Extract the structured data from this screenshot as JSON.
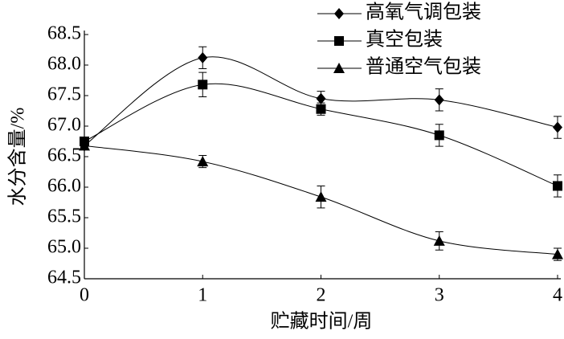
{
  "chart_data": {
    "type": "line",
    "x_label": "贮藏时间/周",
    "y_label": "水分含量/%",
    "x": [
      0,
      1,
      2,
      3,
      4
    ],
    "xlim": [
      0,
      4
    ],
    "xticks": [
      0,
      1,
      2,
      3,
      4
    ],
    "ylim": [
      64.5,
      68.5
    ],
    "yticks": [
      {
        "value": 64.5,
        "label": "64.5"
      },
      {
        "value": 65,
        "label": "65.0"
      },
      {
        "value": 65.5,
        "label": "65.5"
      },
      {
        "value": 66,
        "label": "66.0"
      },
      {
        "value": 66.5,
        "label": "66.5"
      },
      {
        "value": 67,
        "label": "67.0"
      },
      {
        "value": 67.5,
        "label": "67.5"
      },
      {
        "value": 68,
        "label": "68.0"
      },
      {
        "value": 68.5,
        "label": "68.5"
      }
    ],
    "series": [
      {
        "name": "高氧气调包装",
        "color": "#000000",
        "marker": "diamond",
        "values": [
          66.68,
          68.12,
          67.45,
          67.43,
          66.98
        ],
        "errors": [
          0.03,
          0.18,
          0.12,
          0.18,
          0.18
        ]
      },
      {
        "name": "真空包装",
        "color": "#000000",
        "marker": "square",
        "values": [
          66.75,
          67.68,
          67.28,
          66.85,
          66.02
        ],
        "errors": [
          0.05,
          0.2,
          0.1,
          0.18,
          0.18
        ]
      },
      {
        "name": "普通空气包装",
        "color": "#000000",
        "marker": "triangle",
        "values": [
          66.68,
          66.42,
          65.84,
          65.12,
          64.9
        ],
        "errors": [
          0.05,
          0.1,
          0.18,
          0.15,
          0.1
        ]
      }
    ]
  }
}
